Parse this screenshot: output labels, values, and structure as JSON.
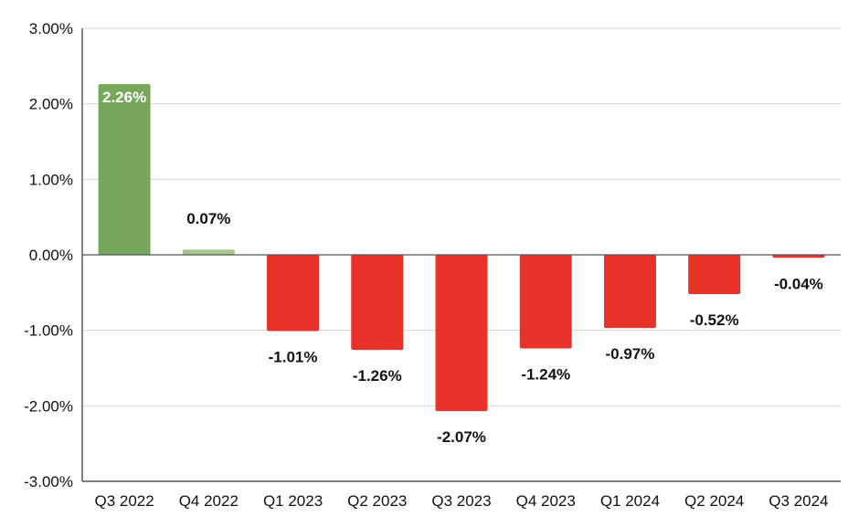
{
  "chart_data": {
    "type": "bar",
    "title": "",
    "xlabel": "",
    "ylabel": "",
    "ylim": [
      -3.0,
      3.0
    ],
    "yticks": [
      3.0,
      2.0,
      1.0,
      0.0,
      -1.0,
      -2.0,
      -3.0
    ],
    "ytick_labels": [
      "3.00%",
      "2.00%",
      "1.00%",
      "0.00%",
      "-1.00%",
      "-2.00%",
      "-3.00%"
    ],
    "categories": [
      "Q3 2022",
      "Q4 2022",
      "Q1 2023",
      "Q2 2023",
      "Q3 2023",
      "Q4 2023",
      "Q1 2024",
      "Q2 2024",
      "Q3 2024"
    ],
    "values": [
      2.26,
      0.07,
      -1.01,
      -1.26,
      -2.07,
      -1.24,
      -0.97,
      -0.52,
      -0.04
    ],
    "data_labels": [
      "2.26%",
      "0.07%",
      "-1.01%",
      "-1.26%",
      "-2.07%",
      "-1.24%",
      "-0.97%",
      "-0.52%",
      "-0.04%"
    ],
    "bar_colors": [
      "#77a75a",
      "#a3c98a",
      "#e8322a",
      "#e8322a",
      "#e8322a",
      "#e8322a",
      "#e8322a",
      "#e8322a",
      "#e8322a"
    ],
    "data_label_colors": [
      "#ffffff",
      "#111111",
      "#111111",
      "#111111",
      "#111111",
      "#111111",
      "#111111",
      "#111111",
      "#111111"
    ],
    "grid": true,
    "legend": "none"
  }
}
